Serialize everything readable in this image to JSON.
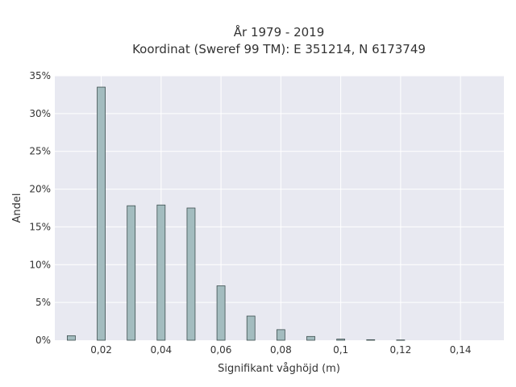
{
  "chart_data": {
    "type": "bar",
    "title_line1": "År 1979 - 2019",
    "title_line2": "Koordinat (Sweref 99 TM): E 351214, N 6173749",
    "xlabel": "Signifikant våghöjd (m)",
    "ylabel": "Andel",
    "x": [
      0.01,
      0.02,
      0.03,
      0.04,
      0.05,
      0.06,
      0.07,
      0.08,
      0.09,
      0.1,
      0.11,
      0.12
    ],
    "values": [
      0.6,
      33.5,
      17.8,
      17.9,
      17.5,
      7.2,
      3.2,
      1.4,
      0.5,
      0.15,
      0.07,
      0.04
    ],
    "xlim": [
      0.0045,
      0.1545
    ],
    "ylim": [
      0,
      35
    ],
    "xticks": [
      0.02,
      0.04,
      0.06,
      0.08,
      0.1,
      0.12,
      0.14
    ],
    "xtick_labels": [
      "0,02",
      "0,04",
      "0,06",
      "0,08",
      "0,1",
      "0,12",
      "0,14"
    ],
    "yticks": [
      0,
      5,
      10,
      15,
      20,
      25,
      30,
      35
    ],
    "ytick_labels": [
      "0%",
      "5%",
      "10%",
      "15%",
      "20%",
      "25%",
      "30%",
      "35%"
    ],
    "grid": true,
    "colors": {
      "plot_bg": "#e8e9f1",
      "bar_fill": "#a3bcbf",
      "bar_stroke": "#3d4f4f",
      "grid": "#ffffff"
    }
  }
}
